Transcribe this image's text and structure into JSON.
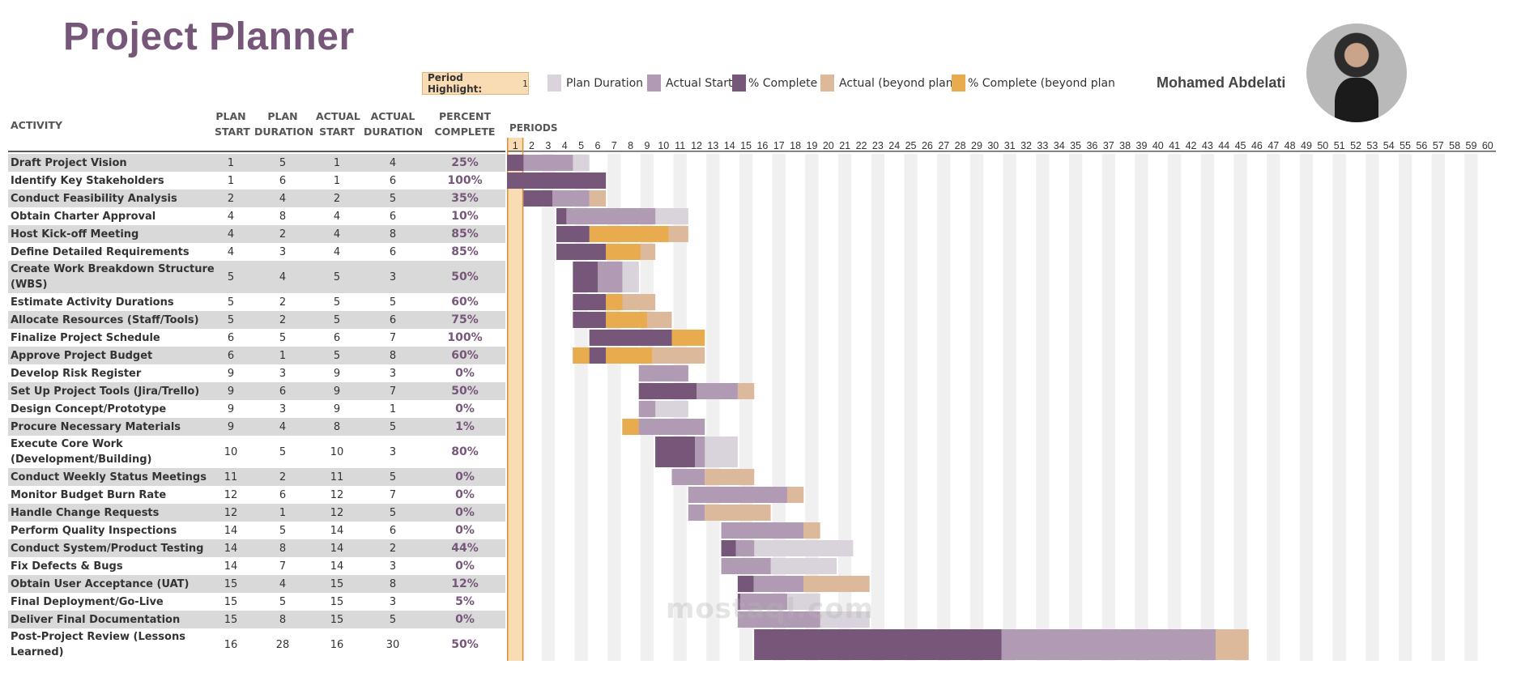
{
  "title": "Project Planner",
  "period_highlight": {
    "label": "Period Highlight:",
    "value": "1"
  },
  "legend": [
    {
      "label": "Plan Duration",
      "color": "#d9d4db"
    },
    {
      "label": "Actual Start",
      "color": "#b09ab4"
    },
    {
      "label": "% Complete",
      "color": "#765779"
    },
    {
      "label": "Actual (beyond plan)",
      "color": "#dbb99a"
    },
    {
      "label": "% Complete (beyond plan",
      "color": "#e8ab4e"
    }
  ],
  "author": "Mohamed Abdelati",
  "columns": {
    "activity": "ACTIVITY",
    "plan_start": [
      "PLAN",
      "START"
    ],
    "plan_duration": [
      "PLAN",
      "DURATION"
    ],
    "actual_start": [
      "ACTUAL",
      "START"
    ],
    "actual_duration": [
      "ACTUAL",
      "DURATION"
    ],
    "percent": [
      "PERCENT",
      "COMPLETE"
    ],
    "periods": "PERIODS"
  },
  "periods": [
    1,
    2,
    3,
    4,
    5,
    6,
    7,
    8,
    9,
    10,
    11,
    12,
    13,
    14,
    15,
    16,
    17,
    18,
    19,
    20,
    21,
    22,
    23,
    24,
    25,
    26,
    27,
    28,
    29,
    30,
    31,
    32,
    33,
    34,
    35,
    36,
    37,
    38,
    39,
    40,
    41,
    42,
    43,
    44,
    45,
    46,
    47,
    48,
    49,
    50,
    51,
    52,
    53,
    54,
    55,
    56,
    57,
    58,
    59,
    60
  ],
  "activities": [
    {
      "name": "Draft Project Vision",
      "plan_start": "1",
      "plan_duration": "5",
      "actual_start": "1",
      "actual_duration": "4",
      "percent": "25%",
      "pct_value": 25
    },
    {
      "name": "Identify Key Stakeholders",
      "plan_start": "1",
      "plan_duration": "6",
      "actual_start": "1",
      "actual_duration": "6",
      "percent": "100%",
      "pct_value": 100
    },
    {
      "name": "Conduct Feasibility Analysis",
      "plan_start": "2",
      "plan_duration": "4",
      "actual_start": "2",
      "actual_duration": "5",
      "percent": "35%",
      "pct_value": 35
    },
    {
      "name": "Obtain Charter Approval",
      "plan_start": "4",
      "plan_duration": "8",
      "actual_start": "4",
      "actual_duration": "6",
      "percent": "10%",
      "pct_value": 10
    },
    {
      "name": "Host Kick-off Meeting",
      "plan_start": "4",
      "plan_duration": "2",
      "actual_start": "4",
      "actual_duration": "8",
      "percent": "85%",
      "pct_value": 85
    },
    {
      "name": "Define Detailed Requirements",
      "plan_start": "4",
      "plan_duration": "3",
      "actual_start": "4",
      "actual_duration": "6",
      "percent": "85%",
      "pct_value": 85
    },
    {
      "name": "Create Work Breakdown Structure (WBS)",
      "plan_start": "5",
      "plan_duration": "4",
      "actual_start": "5",
      "actual_duration": "3",
      "percent": "50%",
      "pct_value": 50
    },
    {
      "name": "Estimate Activity Durations",
      "plan_start": "5",
      "plan_duration": "2",
      "actual_start": "5",
      "actual_duration": "5",
      "percent": "60%",
      "pct_value": 60
    },
    {
      "name": "Allocate Resources (Staff/Tools)",
      "plan_start": "5",
      "plan_duration": "2",
      "actual_start": "5",
      "actual_duration": "6",
      "percent": "75%",
      "pct_value": 75
    },
    {
      "name": "Finalize Project Schedule",
      "plan_start": "6",
      "plan_duration": "5",
      "actual_start": "6",
      "actual_duration": "7",
      "percent": "100%",
      "pct_value": 100
    },
    {
      "name": "Approve Project Budget",
      "plan_start": "6",
      "plan_duration": "1",
      "actual_start": "5",
      "actual_duration": "8",
      "percent": "60%",
      "pct_value": 60
    },
    {
      "name": "Develop Risk Register",
      "plan_start": "9",
      "plan_duration": "3",
      "actual_start": "9",
      "actual_duration": "3",
      "percent": "0%",
      "pct_value": 0
    },
    {
      "name": "Set Up Project Tools (Jira/Trello)",
      "plan_start": "9",
      "plan_duration": "6",
      "actual_start": "9",
      "actual_duration": "7",
      "percent": "50%",
      "pct_value": 50
    },
    {
      "name": "Design Concept/Prototype",
      "plan_start": "9",
      "plan_duration": "3",
      "actual_start": "9",
      "actual_duration": "1",
      "percent": "0%",
      "pct_value": 0
    },
    {
      "name": "Procure Necessary Materials",
      "plan_start": "9",
      "plan_duration": "4",
      "actual_start": "8",
      "actual_duration": "5",
      "percent": "1%",
      "pct_value": 1
    },
    {
      "name": "Execute Core Work (Development/Building)",
      "plan_start": "10",
      "plan_duration": "5",
      "actual_start": "10",
      "actual_duration": "3",
      "percent": "80%",
      "pct_value": 80
    },
    {
      "name": "Conduct Weekly Status Meetings",
      "plan_start": "11",
      "plan_duration": "2",
      "actual_start": "11",
      "actual_duration": "5",
      "percent": "0%",
      "pct_value": 0
    },
    {
      "name": "Monitor Budget Burn Rate",
      "plan_start": "12",
      "plan_duration": "6",
      "actual_start": "12",
      "actual_duration": "7",
      "percent": "0%",
      "pct_value": 0
    },
    {
      "name": "Handle Change Requests",
      "plan_start": "12",
      "plan_duration": "1",
      "actual_start": "12",
      "actual_duration": "5",
      "percent": "0%",
      "pct_value": 0
    },
    {
      "name": "Perform Quality Inspections",
      "plan_start": "14",
      "plan_duration": "5",
      "actual_start": "14",
      "actual_duration": "6",
      "percent": "0%",
      "pct_value": 0
    },
    {
      "name": "Conduct System/Product Testing",
      "plan_start": "14",
      "plan_duration": "8",
      "actual_start": "14",
      "actual_duration": "2",
      "percent": "44%",
      "pct_value": 44
    },
    {
      "name": "Fix Defects & Bugs",
      "plan_start": "14",
      "plan_duration": "7",
      "actual_start": "14",
      "actual_duration": "3",
      "percent": "0%",
      "pct_value": 0
    },
    {
      "name": "Obtain User Acceptance (UAT)",
      "plan_start": "15",
      "plan_duration": "4",
      "actual_start": "15",
      "actual_duration": "8",
      "percent": "12%",
      "pct_value": 12
    },
    {
      "name": "Final Deployment/Go-Live",
      "plan_start": "15",
      "plan_duration": "5",
      "actual_start": "15",
      "actual_duration": "3",
      "percent": "5%",
      "pct_value": 5
    },
    {
      "name": "Deliver Final Documentation",
      "plan_start": "15",
      "plan_duration": "8",
      "actual_start": "15",
      "actual_duration": "5",
      "percent": "0%",
      "pct_value": 0
    },
    {
      "name": "Post-Project Review (Lessons Learned)",
      "plan_start": "16",
      "plan_duration": "28",
      "actual_start": "16",
      "actual_duration": "30",
      "percent": "50%",
      "pct_value": 50
    }
  ],
  "watermark": "mostaql.com",
  "colors": {
    "accent": "#765779",
    "plan": "#d9d4db",
    "actual": "#b09ab4",
    "complete": "#765779",
    "beyond": "#dbb99a",
    "complete_beyond": "#e8ab4e",
    "highlight": "#f9dcb3",
    "stripe": "#f0f0f0"
  }
}
